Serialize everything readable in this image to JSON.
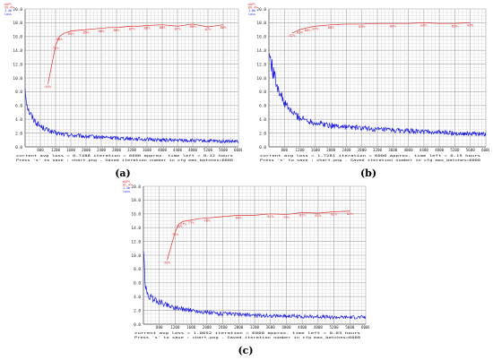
{
  "chart_data": [
    {
      "type": "line",
      "caption": "(a)",
      "legend_entries": [
        "mAP%",
        "99.4%",
        "1.4b",
        "loss"
      ],
      "x_ticks": [
        "800",
        "1200",
        "1600",
        "2000",
        "2400",
        "2800",
        "3200",
        "3600",
        "4000",
        "4400",
        "4800",
        "5200",
        "5600",
        "6000"
      ],
      "y_ticks": [
        "0.0",
        "2.0",
        "4.0",
        "6.0",
        "8.0",
        "10.0",
        "12.0",
        "14.0",
        "16.0",
        "18.0",
        "20.0"
      ],
      "xlim": [
        400,
        6000
      ],
      "ylim": [
        0,
        20
      ],
      "grid": true,
      "footer": [
        "current avg loss = 0.7488    iteration = 6000    approx. time left = 0.12 hours",
        "Press 's' to save : chart.png - Saved                     iteration number                   in cfg max_batches=6000"
      ],
      "series": [
        {
          "color": "#1a1adf",
          "x": [
            400,
            450,
            500,
            600,
            700,
            800,
            1000,
            1200,
            1600,
            2000,
            2400,
            2800,
            3200,
            3600,
            4000,
            4400,
            4800,
            5200,
            5600,
            6000
          ],
          "y": [
            8.6,
            6.2,
            5.2,
            4.2,
            3.5,
            3.0,
            2.4,
            2.0,
            1.7,
            1.5,
            1.4,
            1.3,
            1.2,
            1.1,
            1.0,
            0.95,
            0.9,
            0.85,
            0.8,
            0.75
          ]
        },
        {
          "color": "#e03030",
          "x": [
            1000,
            1200,
            1300,
            1400,
            1600,
            1800,
            2000,
            2200,
            2400,
            2600,
            2800,
            3000,
            3200,
            3400,
            3600,
            4000,
            4400,
            4800,
            5200,
            5600
          ],
          "y": [
            9.1,
            14.7,
            16.0,
            16.4,
            16.8,
            16.9,
            17.0,
            17.1,
            17.2,
            17.3,
            17.3,
            17.4,
            17.5,
            17.5,
            17.6,
            17.7,
            17.5,
            17.8,
            17.4,
            17.7
          ]
        }
      ],
      "point_labels": [
        {
          "x": 1000,
          "y": 9.1,
          "text": "44%"
        },
        {
          "x": 1200,
          "y": 14.7,
          "text": "71%"
        },
        {
          "x": 1300,
          "y": 16.0,
          "text": "80%"
        },
        {
          "x": 1600,
          "y": 16.8,
          "text": "84%"
        },
        {
          "x": 2000,
          "y": 17.0,
          "text": "85%"
        },
        {
          "x": 2400,
          "y": 17.2,
          "text": "86%"
        },
        {
          "x": 2800,
          "y": 17.3,
          "text": "86%"
        },
        {
          "x": 3200,
          "y": 17.5,
          "text": "87%"
        },
        {
          "x": 3600,
          "y": 17.6,
          "text": "88%"
        },
        {
          "x": 4000,
          "y": 17.7,
          "text": "88%"
        },
        {
          "x": 4400,
          "y": 17.5,
          "text": "87%"
        },
        {
          "x": 4800,
          "y": 17.8,
          "text": "89%"
        },
        {
          "x": 5200,
          "y": 17.4,
          "text": "87%"
        },
        {
          "x": 5600,
          "y": 17.7,
          "text": "88%"
        }
      ]
    },
    {
      "type": "line",
      "caption": "(b)",
      "legend_entries": [
        "mAP%",
        "89.4%",
        "1.6b",
        "loss"
      ],
      "x_ticks": [
        "800",
        "1200",
        "1600",
        "2000",
        "2400",
        "2800",
        "3200",
        "3600",
        "4000",
        "4400",
        "4800",
        "5200",
        "5600",
        "6000"
      ],
      "y_ticks": [
        "0.0",
        "2.0",
        "4.0",
        "6.0",
        "8.0",
        "10.0",
        "12.0",
        "14.0",
        "16.0",
        "18.0",
        "20.0"
      ],
      "xlim": [
        400,
        6000
      ],
      "ylim": [
        0,
        20
      ],
      "grid": true,
      "footer": [
        "current avg loss = 1.7281    iteration = 6000    approx. time left = 0.15 hours",
        "Press 's' to save : chart.png - Saved                     iteration number                   in cfg max_batches=6000"
      ],
      "series": [
        {
          "color": "#1a1adf",
          "x": [
            400,
            450,
            500,
            600,
            700,
            800,
            1000,
            1200,
            1600,
            2000,
            2400,
            2800,
            3200,
            3600,
            4000,
            4400,
            4800,
            5200,
            5600,
            6000
          ],
          "y": [
            13.5,
            12.6,
            11.0,
            9.2,
            7.6,
            6.3,
            5.0,
            4.2,
            3.5,
            3.1,
            2.9,
            2.7,
            2.5,
            2.4,
            2.3,
            2.2,
            2.1,
            2.0,
            1.9,
            1.8
          ]
        },
        {
          "color": "#e03030",
          "x": [
            1000,
            1200,
            1400,
            1600,
            1800,
            2000,
            2400,
            2800,
            3200,
            3600,
            4000,
            4400,
            4800,
            5200,
            5600
          ],
          "y": [
            16.5,
            17.0,
            17.3,
            17.5,
            17.6,
            17.7,
            17.8,
            17.8,
            17.9,
            17.9,
            17.9,
            18.0,
            17.9,
            17.9,
            18.0
          ]
        }
      ],
      "point_labels": [
        {
          "x": 1000,
          "y": 16.5,
          "text": "82%"
        },
        {
          "x": 1200,
          "y": 17.0,
          "text": "85%"
        },
        {
          "x": 1400,
          "y": 17.3,
          "text": "86%"
        },
        {
          "x": 1600,
          "y": 17.5,
          "text": "87%"
        },
        {
          "x": 2000,
          "y": 17.7,
          "text": "88%"
        },
        {
          "x": 2800,
          "y": 17.8,
          "text": "89%"
        },
        {
          "x": 3600,
          "y": 17.9,
          "text": "89%"
        },
        {
          "x": 4400,
          "y": 18.0,
          "text": "89%"
        },
        {
          "x": 5200,
          "y": 17.9,
          "text": "89%"
        },
        {
          "x": 5600,
          "y": 18.0,
          "text": "89%"
        }
      ]
    },
    {
      "type": "line",
      "caption": "(c)",
      "legend_entries": [
        "mAP%",
        "82.4%",
        "1.3b",
        "loss"
      ],
      "x_ticks": [
        "800",
        "1200",
        "1600",
        "2000",
        "2400",
        "2800",
        "3200",
        "3600",
        "4000",
        "4400",
        "4800",
        "5200",
        "5600",
        "6000"
      ],
      "y_ticks": [
        "0.0",
        "2.0",
        "4.0",
        "6.0",
        "8.0",
        "10.0",
        "12.0",
        "14.0",
        "16.0",
        "18.0",
        "20.0"
      ],
      "xlim": [
        400,
        6000
      ],
      "ylim": [
        0,
        20
      ],
      "grid": true,
      "footer": [
        "current avg loss = 1.0652    iteration = 6000    approx. time left = 0.03 hours",
        "Press 's' to save : chart.png - Saved                     iteration number                   in cfg max_batches=6000"
      ],
      "series": [
        {
          "color": "#1a1adf",
          "x": [
            400,
            450,
            500,
            600,
            700,
            800,
            1000,
            1200,
            1600,
            2000,
            2400,
            2800,
            3200,
            3600,
            4000,
            4400,
            4800,
            5200,
            5600,
            6000
          ],
          "y": [
            10.5,
            5.5,
            4.2,
            3.8,
            3.5,
            3.2,
            2.8,
            2.4,
            2.0,
            1.7,
            1.5,
            1.4,
            1.3,
            1.2,
            1.2,
            1.1,
            1.1,
            1.0,
            1.0,
            1.0
          ]
        },
        {
          "color": "#e03030",
          "x": [
            1000,
            1200,
            1300,
            1400,
            1600,
            1800,
            2000,
            2200,
            2400,
            2800,
            3200,
            3600,
            4000,
            4400,
            4800,
            5200,
            5600
          ],
          "y": [
            9.3,
            13.4,
            14.6,
            14.9,
            15.1,
            15.3,
            15.4,
            15.5,
            15.6,
            15.8,
            15.8,
            16.0,
            15.9,
            16.2,
            16.1,
            16.3,
            16.4
          ]
        }
      ],
      "point_labels": [
        {
          "x": 1000,
          "y": 9.3,
          "text": "50%"
        },
        {
          "x": 1200,
          "y": 13.4,
          "text": "71%"
        },
        {
          "x": 1300,
          "y": 14.6,
          "text": "75%"
        },
        {
          "x": 1400,
          "y": 14.9,
          "text": "77%"
        },
        {
          "x": 1600,
          "y": 15.1,
          "text": "77%"
        },
        {
          "x": 2000,
          "y": 15.4,
          "text": "78%"
        },
        {
          "x": 2800,
          "y": 15.8,
          "text": "80%"
        },
        {
          "x": 3600,
          "y": 16.0,
          "text": "81%"
        },
        {
          "x": 4000,
          "y": 15.9,
          "text": "79%"
        },
        {
          "x": 4400,
          "y": 16.2,
          "text": "81%"
        },
        {
          "x": 4800,
          "y": 16.1,
          "text": "81%"
        },
        {
          "x": 5200,
          "y": 16.3,
          "text": "82%"
        },
        {
          "x": 5600,
          "y": 16.4,
          "text": "82%"
        }
      ]
    }
  ]
}
